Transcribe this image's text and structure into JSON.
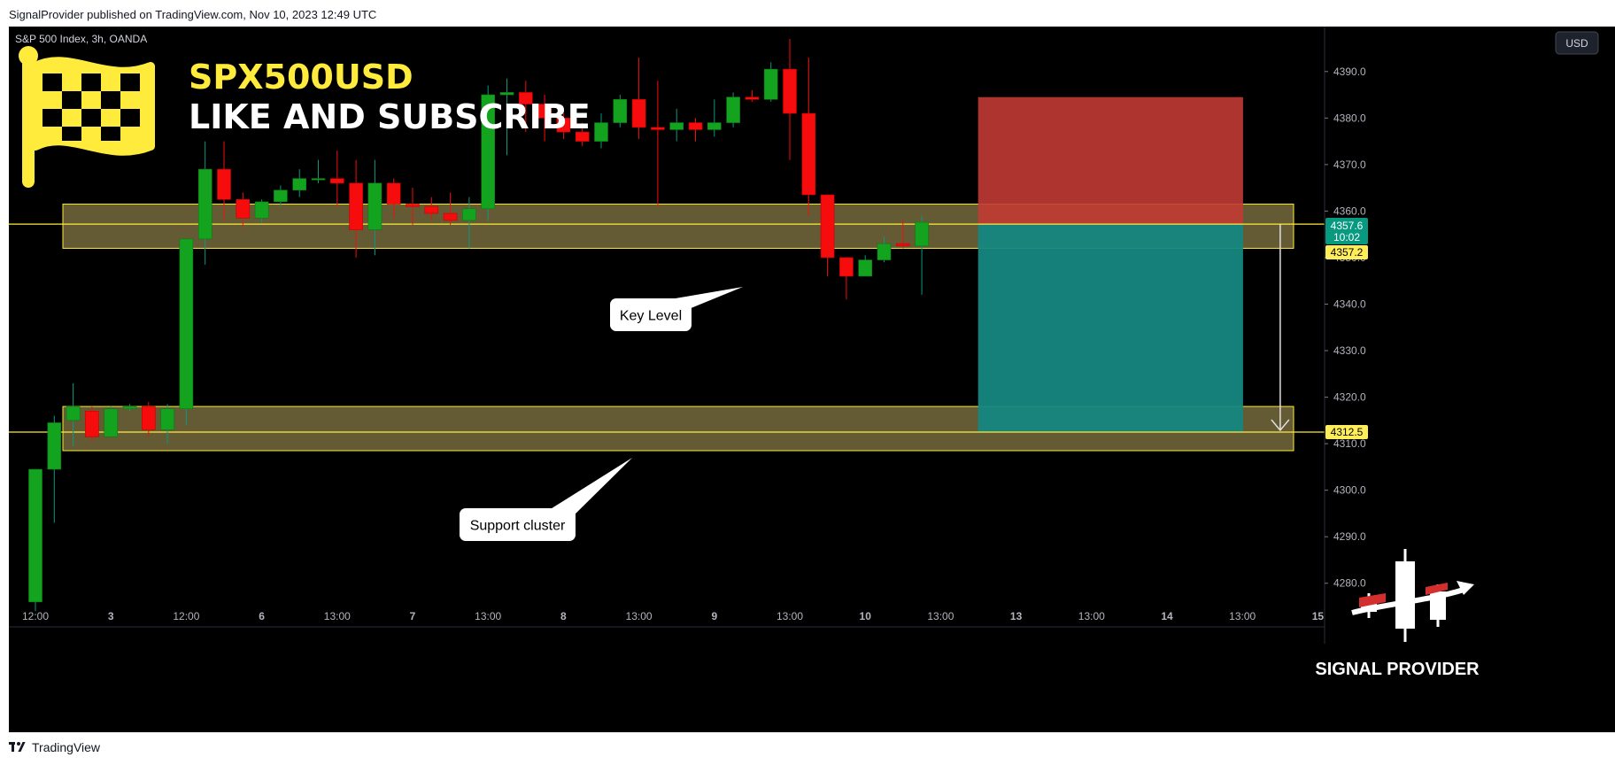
{
  "header": {
    "published": "SignalProvider published on TradingView.com, Nov 10, 2023 12:49 UTC"
  },
  "footer": {
    "brand": "TradingView"
  },
  "chart_data": {
    "type": "candlestick",
    "symbol_label": "S&P 500 Index, 3h, OANDA",
    "currency": "USD",
    "title": "SPX500USD",
    "subtitle": "LIKE AND SUBSCRIBE",
    "ylim": [
      4275,
      4397
    ],
    "y_ticks": [
      4280,
      4290,
      4300,
      4310,
      4320,
      4330,
      4340,
      4350,
      4360,
      4370,
      4380,
      4390
    ],
    "y_tick_labels": [
      "4280.0",
      "4290.0",
      "4300.0",
      "4310.0",
      "4320.0",
      "4330.0",
      "4340.0",
      "4350.0",
      "4360.0",
      "4370.0",
      "4380.0",
      "4390.0"
    ],
    "x_ticks": [
      {
        "i": 0,
        "label": "12:00"
      },
      {
        "i": 4,
        "label": "3"
      },
      {
        "i": 8,
        "label": "12:00"
      },
      {
        "i": 12,
        "label": "6"
      },
      {
        "i": 16,
        "label": "13:00"
      },
      {
        "i": 20,
        "label": "7"
      },
      {
        "i": 24,
        "label": "13:00"
      },
      {
        "i": 28,
        "label": "8"
      },
      {
        "i": 32,
        "label": "13:00"
      },
      {
        "i": 36,
        "label": "9"
      },
      {
        "i": 40,
        "label": "13:00"
      },
      {
        "i": 44,
        "label": "10"
      },
      {
        "i": 48,
        "label": "13:00"
      },
      {
        "i": 52,
        "label": "13"
      },
      {
        "i": 56,
        "label": "13:00"
      },
      {
        "i": 60,
        "label": "14"
      },
      {
        "i": 64,
        "label": "13:00"
      },
      {
        "i": 68,
        "label": "15"
      }
    ],
    "candles": [
      [
        4276,
        4304.5,
        4274,
        4304.5
      ],
      [
        4304.5,
        4314.5,
        4293,
        4316
      ],
      [
        4315,
        4318,
        4309.5,
        4323
      ],
      [
        4317,
        4311.5,
        4310.5,
        4318
      ],
      [
        4311.5,
        4317.5,
        4311.5,
        4318
      ],
      [
        4317.5,
        4318,
        4317,
        4318.5
      ],
      [
        4318,
        4313,
        4311.5,
        4319
      ],
      [
        4313,
        4317.5,
        4310,
        4318.5
      ],
      [
        4317.5,
        4354,
        4314,
        4354
      ],
      [
        4354,
        4369,
        4348.5,
        4375
      ],
      [
        4369,
        4362.5,
        4358,
        4375
      ],
      [
        4362.5,
        4358.5,
        4356.5,
        4364
      ],
      [
        4358.5,
        4362,
        4357.5,
        4362.5
      ],
      [
        4362,
        4364.5,
        4361,
        4365.5
      ],
      [
        4364.5,
        4367,
        4363,
        4369
      ],
      [
        4367,
        4367,
        4366,
        4371
      ],
      [
        4367,
        4366,
        4361,
        4373
      ],
      [
        4366,
        4356,
        4350,
        4371
      ],
      [
        4356,
        4366,
        4350.5,
        4371
      ],
      [
        4366,
        4361.5,
        4358.5,
        4367
      ],
      [
        4361.5,
        4361,
        4357,
        4365
      ],
      [
        4361,
        4359.5,
        4358,
        4363
      ],
      [
        4359.5,
        4358,
        4357,
        4364
      ],
      [
        4358,
        4360.5,
        4352,
        4363
      ],
      [
        4360.5,
        4385,
        4358,
        4387
      ],
      [
        4385,
        4385.5,
        4372,
        4388.5
      ],
      [
        4385.5,
        4383,
        4377,
        4388
      ],
      [
        4383,
        4380,
        4375,
        4385
      ],
      [
        4380,
        4377,
        4375.5,
        4381
      ],
      [
        4377,
        4375,
        4374,
        4379
      ],
      [
        4375,
        4379,
        4373.5,
        4381
      ],
      [
        4379,
        4384,
        4378,
        4385
      ],
      [
        4384,
        4378,
        4375.5,
        4393
      ],
      [
        4378,
        4377.5,
        4361,
        4388
      ],
      [
        4377.5,
        4379,
        4375,
        4382
      ],
      [
        4379,
        4377.5,
        4375,
        4380
      ],
      [
        4377.5,
        4379,
        4376,
        4384
      ],
      [
        4379,
        4384.5,
        4378,
        4385.5
      ],
      [
        4384.5,
        4384,
        4383.5,
        4386
      ],
      [
        4384,
        4390.5,
        4383.5,
        4392
      ],
      [
        4390.5,
        4381,
        4371,
        4397
      ],
      [
        4381,
        4363.5,
        4359,
        4393
      ],
      [
        4363.5,
        4350,
        4346,
        4363.5
      ],
      [
        4350,
        4346,
        4341,
        4350
      ],
      [
        4346,
        4349.5,
        4346,
        4350.5
      ],
      [
        4349.5,
        4353,
        4349,
        4354.5
      ],
      [
        4353,
        4352.5,
        4352,
        4358
      ],
      [
        4352.5,
        4357.6,
        4342,
        4359
      ]
    ],
    "key_level": {
      "label": "Key Level",
      "low": 4352,
      "high": 4361.5
    },
    "support_zone": {
      "label": "Support cluster",
      "low": 4308.5,
      "high": 4318
    },
    "short_position": {
      "entry": 4357.2,
      "stop": 4384.5,
      "target": 4312.5,
      "start_index": 49,
      "end_index": 63
    },
    "price_labels": [
      {
        "value": "4357.6",
        "sub": "10:02",
        "color": "#089981"
      },
      {
        "value": "4357.2",
        "color": "#ffee58"
      },
      {
        "value": "4312.5",
        "color": "#ffee58"
      }
    ],
    "logo_text": "SIGNAL PROVIDER",
    "colors": {
      "up": "#089981",
      "up_body": "#14a31f",
      "down": "#f60c0c",
      "zone": "#807442",
      "stop": "#c13b34",
      "target": "#15877f"
    }
  }
}
